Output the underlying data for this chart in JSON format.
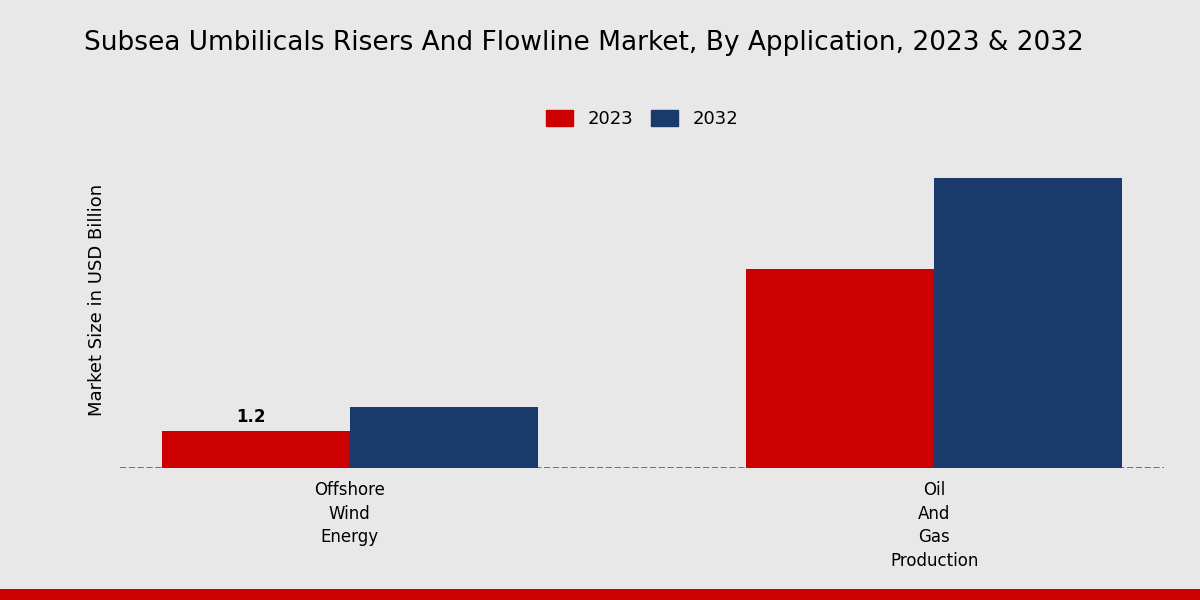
{
  "title": "Subsea Umbilicals Risers And Flowline Market, By Application, 2023 & 2032",
  "ylabel": "Market Size in USD Billion",
  "categories": [
    "Offshore\nWind\nEnergy",
    "Oil\nAnd\nGas\nProduction"
  ],
  "values_2023": [
    1.2,
    6.5
  ],
  "values_2032": [
    2.0,
    9.5
  ],
  "color_2023": "#cc0000",
  "color_2032": "#1a3a6b",
  "annotation_2023_0": "1.2",
  "bar_width": 0.18,
  "background_color": "#e8e8e8",
  "title_fontsize": 19,
  "ylabel_fontsize": 13,
  "tick_fontsize": 12,
  "legend_fontsize": 13,
  "annotation_fontsize": 12,
  "ylim": [
    0,
    11
  ],
  "legend_labels": [
    "2023",
    "2032"
  ],
  "x_positions": [
    0.22,
    0.78
  ],
  "xlim": [
    0.0,
    1.0
  ]
}
